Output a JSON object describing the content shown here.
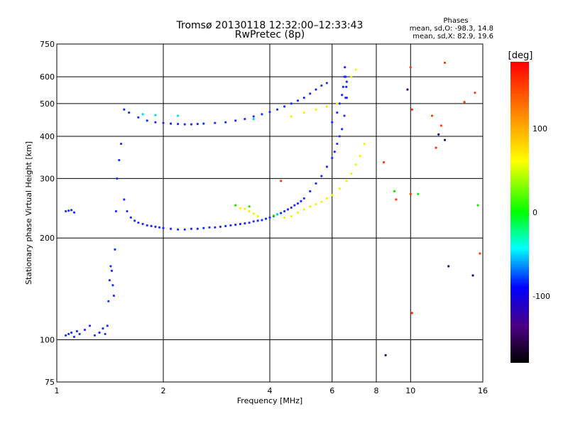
{
  "header": {
    "title": "Tromsø 20130118 12:32:00–12:33:43",
    "subtitle": "RwPretec (8p)"
  },
  "phase_stats": {
    "heading": "Phases",
    "o_line": "mean, sd,O: -98.3, 14.8",
    "x_line": "mean, sd,X:  82.9, 19.6"
  },
  "chart_data": {
    "type": "scatter",
    "xlabel": "Frequency [MHz]",
    "ylabel": "Stationary phase Virtual Height [km]",
    "x_scale": "log",
    "y_scale": "log",
    "xlim": [
      1,
      16
    ],
    "ylim": [
      75,
      750
    ],
    "xticks": [
      1,
      2,
      4,
      6,
      8,
      10,
      16
    ],
    "yticks": [
      75,
      100,
      200,
      300,
      400,
      500,
      600,
      750
    ],
    "grid": true,
    "colorbar": {
      "label": "[deg]",
      "range": [
        -180,
        180
      ],
      "ticks": [
        100,
        0,
        -100
      ]
    },
    "series": [
      {
        "phase": -100,
        "color": "#1d2cff",
        "x": [
          1.06,
          1.08,
          1.1,
          1.12,
          1.14,
          1.16,
          1.2,
          1.24,
          1.28,
          1.32,
          1.35,
          1.37,
          1.39,
          1.4,
          1.41,
          1.42,
          1.43,
          1.44,
          1.45,
          1.46,
          1.47,
          1.48,
          1.5,
          1.52,
          1.55,
          1.58,
          1.62,
          1.66,
          1.7,
          1.75,
          1.8,
          1.85,
          1.9,
          1.95,
          2.0,
          2.1,
          2.2,
          2.3,
          2.4,
          2.5,
          2.6,
          2.7,
          2.8,
          2.9,
          3.0,
          3.1,
          3.2,
          3.3,
          3.4,
          3.5,
          3.6,
          3.7,
          3.8,
          3.9,
          4.0,
          4.1,
          4.2,
          4.3,
          4.4,
          4.5,
          4.6,
          4.7,
          4.8,
          4.9,
          5.0,
          5.2,
          5.4,
          5.6,
          5.8,
          6.0,
          6.1,
          6.2,
          6.3,
          6.4,
          6.5,
          6.55,
          6.6,
          1.55,
          1.6,
          1.7,
          1.8,
          1.9,
          2.0,
          2.1,
          2.2,
          2.3,
          2.4,
          2.5,
          2.6,
          2.8,
          3.0,
          3.2,
          3.4,
          3.6,
          3.8,
          4.0,
          4.2,
          4.4,
          4.6,
          4.8,
          5.0,
          5.2,
          5.4,
          5.6,
          5.8,
          6.0,
          6.2,
          6.3,
          6.4,
          6.45,
          6.5,
          6.52,
          6.55,
          6.58,
          6.6,
          1.06,
          1.08,
          1.1,
          1.12
        ],
        "y": [
          103,
          104,
          105,
          102,
          106,
          104,
          107,
          110,
          103,
          105,
          108,
          104,
          110,
          130,
          150,
          165,
          160,
          145,
          135,
          185,
          240,
          300,
          340,
          380,
          260,
          240,
          230,
          225,
          222,
          220,
          218,
          217,
          216,
          215,
          214,
          213,
          212,
          212,
          213,
          213,
          214,
          215,
          215,
          216,
          217,
          218,
          219,
          220,
          221,
          222,
          224,
          225,
          226,
          228,
          230,
          232,
          235,
          237,
          240,
          243,
          246,
          250,
          253,
          257,
          262,
          275,
          290,
          305,
          325,
          345,
          360,
          380,
          400,
          420,
          460,
          520,
          580,
          480,
          470,
          455,
          445,
          440,
          438,
          436,
          435,
          434,
          434,
          435,
          436,
          438,
          440,
          445,
          450,
          458,
          465,
          472,
          480,
          490,
          500,
          510,
          520,
          535,
          550,
          565,
          575,
          440,
          470,
          500,
          530,
          560,
          600,
          640,
          600,
          560,
          520,
          240,
          241,
          242,
          238
        ]
      },
      {
        "phase": 100,
        "color": "#f4f000",
        "x": [
          3.3,
          3.4,
          3.5,
          3.6,
          3.7,
          4.4,
          4.6,
          4.8,
          5.0,
          5.2,
          5.4,
          5.6,
          5.8,
          6.0,
          6.3,
          6.6,
          6.8,
          7.0,
          7.2,
          7.4,
          4.6,
          5.0,
          5.4,
          5.8,
          6.2,
          6.8,
          7.0
        ],
        "y": [
          245,
          244,
          240,
          236,
          232,
          230,
          232,
          238,
          243,
          248,
          252,
          256,
          262,
          268,
          280,
          295,
          310,
          330,
          350,
          380,
          458,
          470,
          480,
          490,
          500,
          600,
          630
        ]
      },
      {
        "phase": -20,
        "color": "#00d8e8",
        "x": [
          1.75,
          1.9,
          2.2,
          3.6,
          4.2
        ],
        "y": [
          465,
          462,
          460,
          450,
          235
        ]
      },
      {
        "phase": 40,
        "color": "#22e000",
        "x": [
          3.2,
          3.5,
          4.1,
          9.0,
          10.5,
          15.5
        ],
        "y": [
          250,
          248,
          233,
          275,
          270,
          250
        ]
      },
      {
        "phase": 160,
        "color": "#ff3a00",
        "x": [
          10,
          10.1,
          11.5,
          12.2,
          12.5,
          14.2,
          15.2,
          15.7,
          4.3,
          10,
          9.1,
          10.1,
          11.8,
          8.4
        ],
        "y": [
          640,
          120,
          460,
          430,
          660,
          505,
          538,
          180,
          295,
          270,
          260,
          480,
          370,
          335
        ]
      },
      {
        "phase": -150,
        "color": "#2a006e",
        "x": [
          8.5,
          9.8,
          12.0,
          12.5,
          15.0,
          12.8
        ],
        "y": [
          90,
          550,
          405,
          390,
          155,
          165
        ]
      }
    ]
  }
}
